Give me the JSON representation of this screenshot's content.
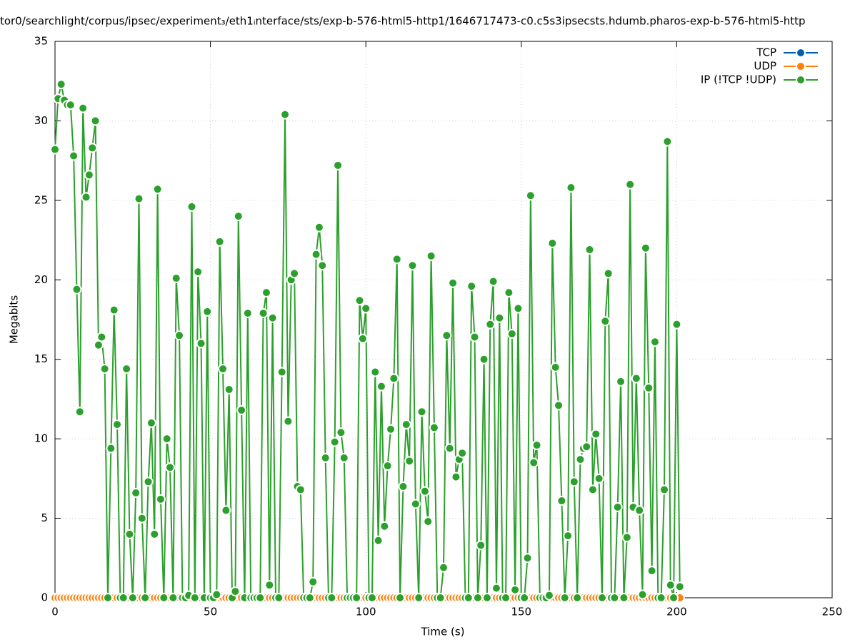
{
  "chart_data": {
    "type": "line",
    "title": "tor0/searchlight/corpus/ipsec/experiment₃/eth1ᵢnterface/sts/exp-b-576-html5-http1/1646717473-c0.c5s3ipsecsts.hdumb.pharos-exp-b-576-html5-http",
    "x_label": "Time (s)",
    "y_label": "Megabits",
    "xlim": [
      0,
      250
    ],
    "xticks": [
      0,
      50,
      100,
      150,
      200,
      250
    ],
    "ylim": [
      0,
      35
    ],
    "yticks": [
      0,
      5,
      10,
      15,
      20,
      25,
      30,
      35
    ],
    "grid": true,
    "legend": "top-right",
    "x": [
      0,
      1,
      2,
      3,
      4,
      5,
      6,
      7,
      8,
      9,
      10,
      11,
      12,
      13,
      14,
      15,
      16,
      17,
      18,
      19,
      20,
      21,
      22,
      23,
      24,
      25,
      26,
      27,
      28,
      29,
      30,
      31,
      32,
      33,
      34,
      35,
      36,
      37,
      38,
      39,
      40,
      41,
      42,
      43,
      44,
      45,
      46,
      47,
      48,
      49,
      50,
      51,
      52,
      53,
      54,
      55,
      56,
      57,
      58,
      59,
      60,
      61,
      62,
      63,
      64,
      65,
      66,
      67,
      68,
      69,
      70,
      71,
      72,
      73,
      74,
      75,
      76,
      77,
      78,
      79,
      80,
      81,
      82,
      83,
      84,
      85,
      86,
      87,
      88,
      89,
      90,
      91,
      92,
      93,
      94,
      95,
      96,
      97,
      98,
      99,
      100,
      101,
      102,
      103,
      104,
      105,
      106,
      107,
      108,
      109,
      110,
      111,
      112,
      113,
      114,
      115,
      116,
      117,
      118,
      119,
      120,
      121,
      122,
      123,
      124,
      125,
      126,
      127,
      128,
      129,
      130,
      131,
      132,
      133,
      134,
      135,
      136,
      137,
      138,
      139,
      140,
      141,
      142,
      143,
      144,
      145,
      146,
      147,
      148,
      149,
      150,
      151,
      152,
      153,
      154,
      155,
      156,
      157,
      158,
      159,
      160,
      161,
      162,
      163,
      164,
      165,
      166,
      167,
      168,
      169,
      170,
      171,
      172,
      173,
      174,
      175,
      176,
      177,
      178,
      179,
      180,
      181,
      182,
      183,
      184,
      185,
      186,
      187,
      188,
      189,
      190,
      191,
      192,
      193,
      194,
      195,
      196,
      197,
      198,
      199,
      200,
      201
    ],
    "series": [
      {
        "name": "TCP",
        "color": "#0060ad",
        "values": [
          0,
          0,
          0,
          0,
          0,
          0,
          0,
          0,
          0,
          0,
          0,
          0,
          0,
          0,
          0,
          0,
          0,
          0,
          0,
          0,
          0,
          0,
          0,
          0,
          0,
          0,
          0,
          0,
          0,
          0,
          0,
          0,
          0,
          0,
          0,
          0,
          0,
          0,
          0,
          0,
          0,
          0,
          0,
          0,
          0,
          0,
          0,
          0,
          0,
          0,
          0,
          0,
          0,
          0,
          0,
          0,
          0,
          0,
          0,
          0,
          0,
          0,
          0,
          0,
          0,
          0,
          0,
          0,
          0,
          0,
          0,
          0,
          0,
          0,
          0,
          0,
          0,
          0,
          0,
          0,
          0,
          0,
          0,
          0,
          0,
          0,
          0,
          0,
          0,
          0,
          0,
          0,
          0,
          0,
          0,
          0,
          0,
          0,
          0,
          0,
          0,
          0,
          0,
          0,
          0,
          0,
          0,
          0,
          0,
          0,
          0,
          0,
          0,
          0,
          0,
          0,
          0,
          0,
          0,
          0,
          0,
          0,
          0,
          0,
          0,
          0,
          0,
          0,
          0,
          0,
          0,
          0,
          0,
          0,
          0,
          0,
          0,
          0,
          0,
          0,
          0,
          0,
          0,
          0,
          0,
          0,
          0,
          0,
          0,
          0,
          0,
          0,
          0,
          0,
          0,
          0,
          0,
          0,
          0,
          0,
          0,
          0,
          0,
          0,
          0,
          0,
          0,
          0,
          0,
          0,
          0,
          0,
          0,
          0,
          0,
          0,
          0,
          0,
          0,
          0,
          0,
          0,
          0,
          0,
          0,
          0,
          0,
          0,
          0,
          0,
          0,
          0,
          0,
          0,
          0,
          0,
          0,
          0,
          0,
          0,
          0,
          0
        ]
      },
      {
        "name": "UDP",
        "color": "#ff7f0e",
        "values": [
          0,
          0,
          0,
          0,
          0,
          0,
          0,
          0,
          0,
          0,
          0,
          0,
          0,
          0,
          0,
          0,
          0,
          0,
          0,
          0,
          0,
          0,
          0,
          0,
          0,
          0,
          0,
          0,
          0,
          0,
          0,
          0,
          0,
          0,
          0,
          0,
          0,
          0,
          0,
          0,
          0,
          0,
          0,
          0,
          0,
          0,
          0,
          0,
          0,
          0,
          0,
          0,
          0,
          0,
          0,
          0,
          0,
          0,
          0,
          0,
          0,
          0,
          0,
          0,
          0,
          0,
          0,
          0,
          0,
          0,
          0,
          0,
          0,
          0,
          0,
          0,
          0,
          0,
          0,
          0,
          0,
          0,
          0,
          0,
          0,
          0,
          0,
          0,
          0,
          0,
          0,
          0,
          0,
          0,
          0,
          0,
          0,
          0,
          0,
          0,
          0,
          0,
          0,
          0,
          0,
          0,
          0,
          0,
          0,
          0,
          0,
          0,
          0,
          0,
          0,
          0,
          0,
          0,
          0,
          0,
          0,
          0,
          0,
          0,
          0,
          0,
          0,
          0,
          0,
          0,
          0,
          0,
          0,
          0,
          0,
          0,
          0,
          0,
          0,
          0,
          0,
          0,
          0,
          0,
          0,
          0,
          0,
          0,
          0,
          0,
          0,
          0,
          0,
          0,
          0,
          0,
          0,
          0,
          0,
          0,
          0,
          0,
          0,
          0,
          0,
          0,
          0,
          0,
          0,
          0,
          0,
          0,
          0,
          0,
          0,
          0,
          0,
          0,
          0,
          0,
          0,
          0,
          0,
          0,
          0,
          0,
          0,
          0,
          0,
          0,
          0,
          0,
          0,
          0,
          0,
          0,
          0,
          0,
          0,
          0,
          0,
          0
        ]
      },
      {
        "name": "IP (!TCP  !UDP)",
        "color": "#2ca02c",
        "values": [
          28.2,
          31.4,
          32.3,
          31.3,
          31.0,
          31.0,
          27.8,
          19.4,
          11.7,
          30.8,
          25.2,
          26.6,
          28.3,
          30.0,
          15.9,
          16.4,
          14.4,
          0,
          9.4,
          18.1,
          10.9,
          0,
          0,
          14.4,
          4.0,
          0,
          6.6,
          25.1,
          5.0,
          0,
          7.3,
          11.0,
          4.0,
          25.7,
          6.2,
          0,
          10.0,
          8.2,
          0,
          20.1,
          16.5,
          0,
          0,
          0.15,
          24.6,
          0,
          20.5,
          16.0,
          0,
          18.0,
          0,
          0,
          0.2,
          22.4,
          14.4,
          5.5,
          13.1,
          0,
          0.4,
          24.0,
          11.8,
          0,
          17.9,
          0,
          0,
          0,
          0,
          17.9,
          19.2,
          0.8,
          17.6,
          0,
          0,
          14.2,
          30.4,
          11.1,
          20.0,
          20.4,
          7.0,
          6.8,
          0,
          0,
          0,
          1.0,
          21.6,
          23.3,
          20.9,
          8.8,
          0,
          0,
          9.8,
          27.2,
          10.4,
          8.8,
          0,
          0,
          0,
          0,
          18.7,
          16.3,
          18.2,
          0,
          0,
          14.2,
          3.6,
          13.3,
          4.5,
          8.3,
          10.6,
          13.8,
          21.3,
          0,
          7.0,
          10.9,
          8.6,
          20.9,
          5.9,
          0,
          11.7,
          6.7,
          4.8,
          21.5,
          10.7,
          0,
          0,
          1.9,
          16.5,
          9.4,
          19.8,
          7.6,
          8.7,
          9.1,
          0,
          0,
          19.6,
          16.4,
          0,
          3.3,
          15.0,
          0,
          17.2,
          19.9,
          0.6,
          17.6,
          0,
          0,
          19.2,
          16.6,
          0.5,
          18.2,
          0,
          0,
          2.5,
          25.3,
          8.5,
          9.6,
          0,
          0,
          0,
          0.15,
          22.3,
          14.5,
          12.1,
          6.1,
          0,
          3.9,
          25.8,
          7.3,
          0,
          8.7,
          9.4,
          9.5,
          21.9,
          6.8,
          10.3,
          7.5,
          0,
          17.4,
          20.4,
          0,
          0,
          5.7,
          13.6,
          0,
          3.8,
          26.0,
          5.7,
          13.8,
          5.5,
          0.2,
          22.0,
          13.2,
          1.7,
          16.1,
          0,
          0,
          6.8,
          28.7,
          0.8,
          0,
          17.2,
          0.7
        ]
      }
    ]
  }
}
